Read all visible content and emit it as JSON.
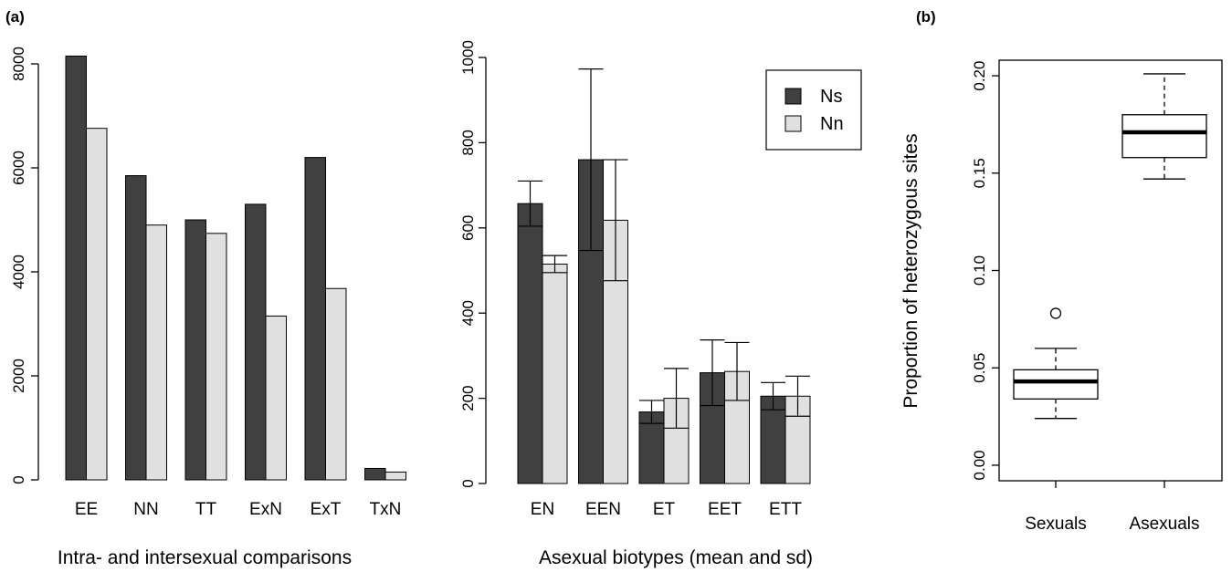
{
  "panels": {
    "a_label": "(a)",
    "b_label": "(b)"
  },
  "colors": {
    "ns": "#404040",
    "nn": "#e0e0e0",
    "stroke": "#000000"
  },
  "chart_data": [
    {
      "type": "bar",
      "xlabel": "Intra- and intersexual comparisons",
      "ylabel": "",
      "categories": [
        "EE",
        "NN",
        "TT",
        "ExN",
        "ExT",
        "TxN"
      ],
      "series": [
        {
          "values": [
            8150,
            5850,
            5000,
            5300,
            6200,
            220
          ]
        },
        {
          "values": [
            6760,
            4900,
            4740,
            3150,
            3680,
            150
          ]
        }
      ],
      "yticks": [
        0,
        2000,
        4000,
        6000,
        8000
      ],
      "ylim": [
        0,
        8150
      ]
    },
    {
      "type": "bar",
      "xlabel": "Asexual biotypes (mean and sd)",
      "ylabel": "",
      "categories": [
        "EN",
        "EEN",
        "ET",
        "EET",
        "ETT"
      ],
      "series": [
        {
          "name": "Ns",
          "values": [
            657,
            760,
            168,
            260,
            205
          ],
          "sd": [
            53,
            213,
            27,
            77,
            32
          ]
        },
        {
          "name": "Nn",
          "values": [
            515,
            618,
            200,
            263,
            205
          ],
          "sd": [
            20,
            142,
            70,
            68,
            47
          ]
        }
      ],
      "yticks": [
        0,
        200,
        400,
        600,
        800,
        1000
      ],
      "ylim": [
        0,
        1000
      ],
      "legend": "top-right"
    },
    {
      "type": "boxplot",
      "xlabel": "",
      "ylabel": "Proportion of heterozygous sites",
      "categories": [
        "Sexuals",
        "Asexuals"
      ],
      "boxes": [
        {
          "whisker_low": 0.024,
          "q1": 0.034,
          "median": 0.043,
          "q3": 0.049,
          "whisker_high": 0.06,
          "outliers": [
            0.078
          ]
        },
        {
          "whisker_low": 0.147,
          "q1": 0.158,
          "median": 0.171,
          "q3": 0.18,
          "whisker_high": 0.201,
          "outliers": []
        }
      ],
      "yticks": [
        "0.00",
        "0.05",
        "0.10",
        "0.15",
        "0.20"
      ],
      "ylim": [
        -0.008,
        0.208
      ]
    }
  ]
}
